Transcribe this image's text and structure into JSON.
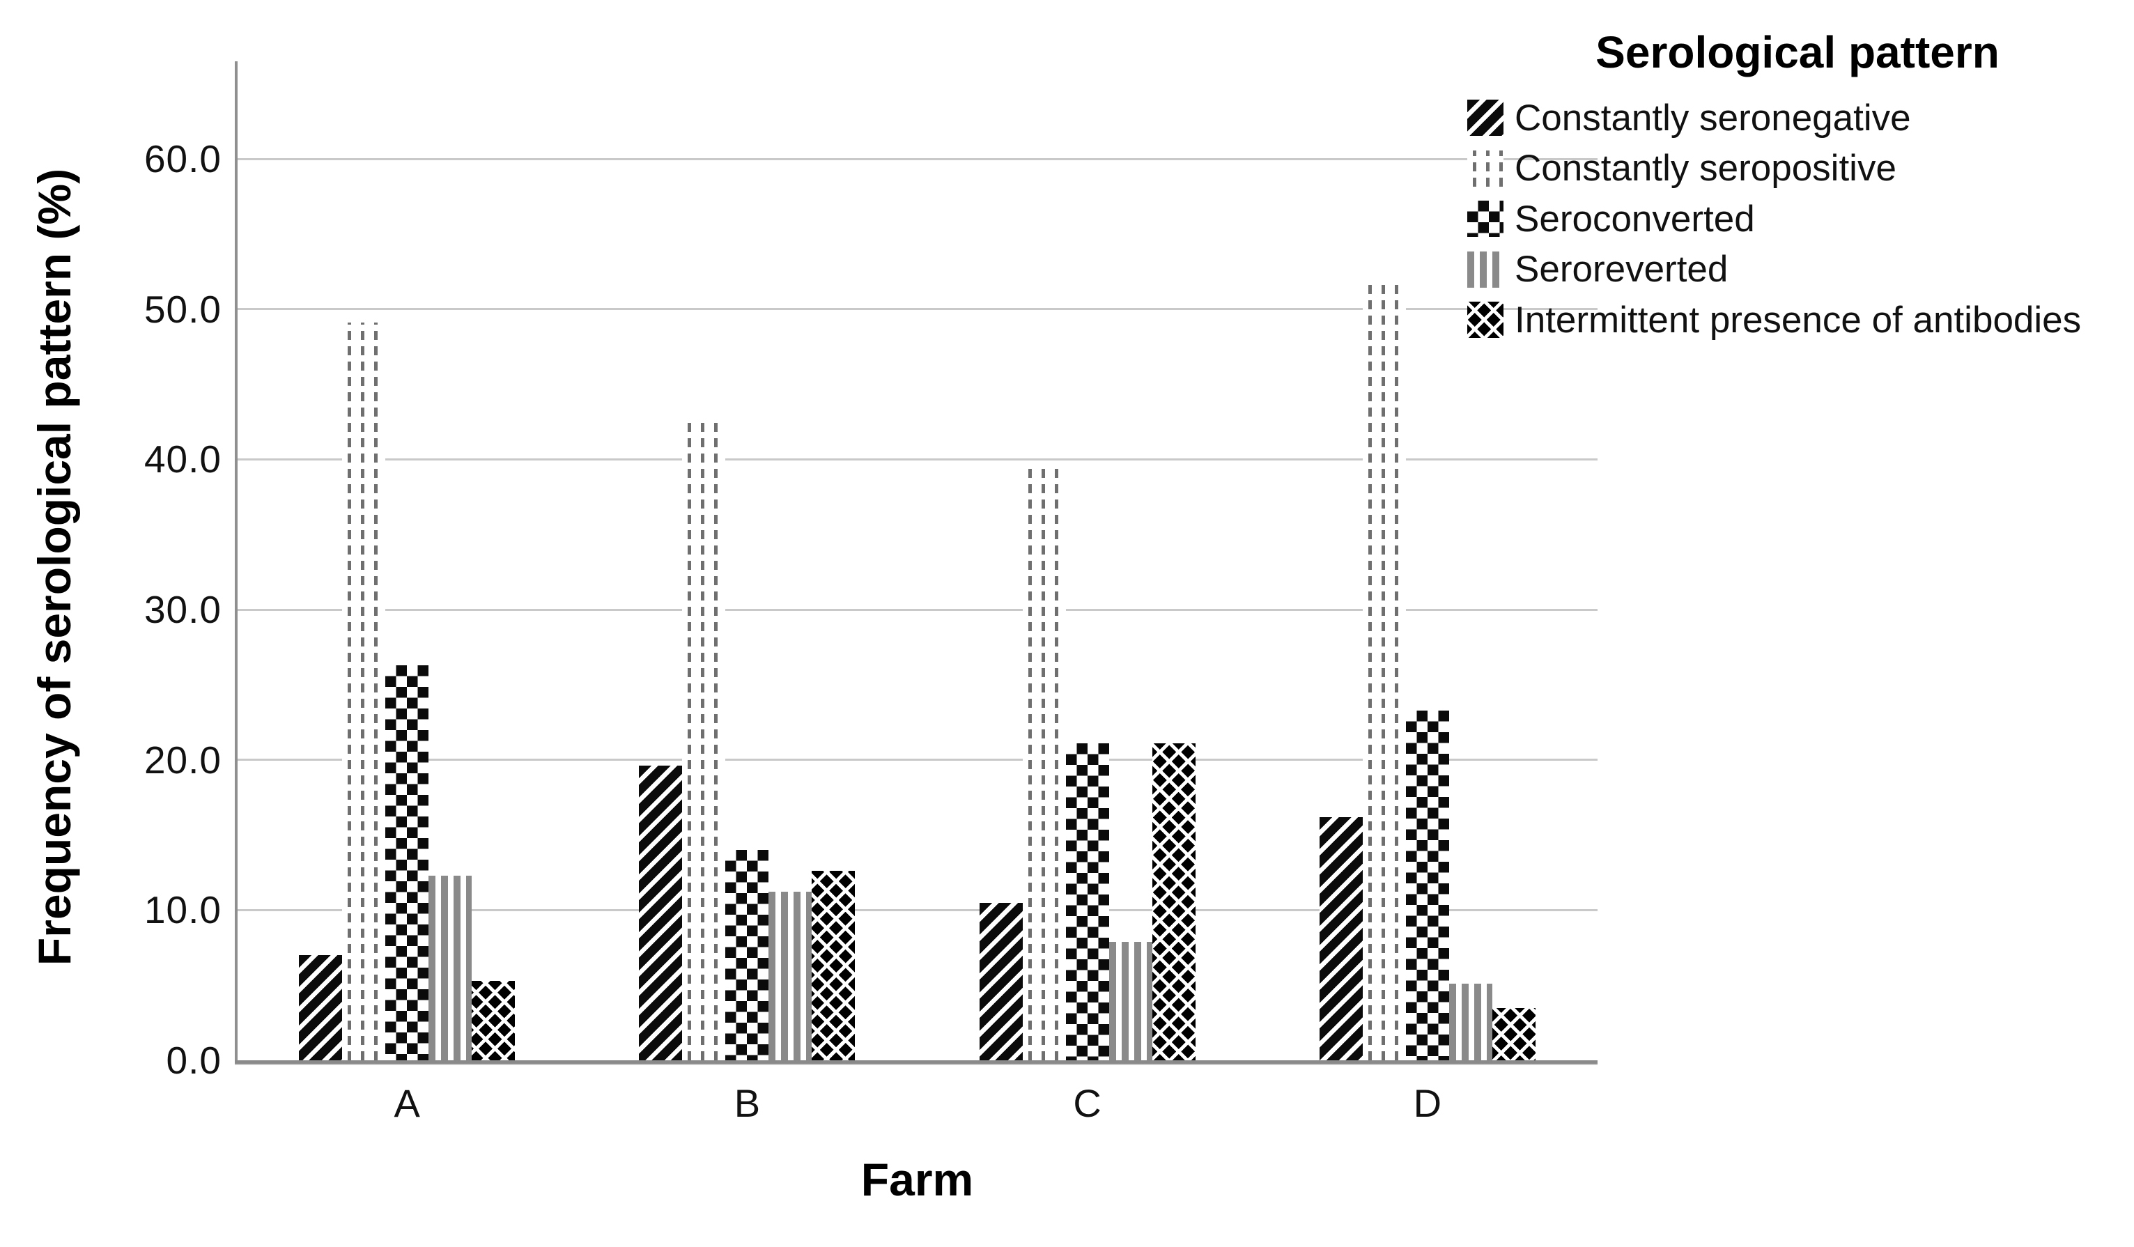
{
  "y_axis": {
    "title": "Frequency of serological pattern (%)",
    "tick_labels": [
      "0.0",
      "10.0",
      "20.0",
      "30.0",
      "40.0",
      "50.0",
      "60.0"
    ]
  },
  "x_axis": {
    "title": "Farm",
    "category_labels": [
      "A",
      "B",
      "C",
      "D"
    ]
  },
  "legend": {
    "title": "Serological pattern",
    "items": [
      "Constantly seronegative",
      "Constantly seropositive",
      "Seroconverted",
      "Seroreverted",
      "Intermittent presence of antibodies"
    ]
  },
  "colors": {
    "foreground": "#111111",
    "gridline": "#c9c9c9",
    "axis_line": "#8a8a8a",
    "pattern_gray": "#8a8a8a",
    "pattern_dash_gray": "#6f6f6f",
    "pattern_black": "#0b0b0b",
    "background": "#ffffff"
  },
  "chart_data": {
    "type": "bar",
    "title": "",
    "xlabel": "Farm",
    "ylabel": "Frequency of serological pattern (%)",
    "categories": [
      "A",
      "B",
      "C",
      "D"
    ],
    "series": [
      {
        "name": "Constantly seronegative",
        "pattern": "diagonal-stripes",
        "values": [
          7.0,
          19.6,
          10.5,
          16.2
        ]
      },
      {
        "name": "Constantly seropositive",
        "pattern": "dashed-vertical-lines",
        "values": [
          49.1,
          42.7,
          39.5,
          51.8
        ]
      },
      {
        "name": "Seroconverted",
        "pattern": "checkerboard",
        "values": [
          26.3,
          14.0,
          21.1,
          23.3
        ]
      },
      {
        "name": "Seroreverted",
        "pattern": "vertical-stripes",
        "values": [
          12.3,
          11.2,
          7.9,
          5.1
        ]
      },
      {
        "name": "Intermittent presence of antibodies",
        "pattern": "diamond-lattice",
        "values": [
          5.3,
          12.6,
          21.1,
          3.5
        ]
      }
    ],
    "ylim": [
      0,
      66.5
    ],
    "yticks": [
      0,
      10,
      20,
      30,
      40,
      50,
      60
    ],
    "grid": true,
    "legend_position": "top-right",
    "bar_fill": "black-and-white patterns"
  }
}
